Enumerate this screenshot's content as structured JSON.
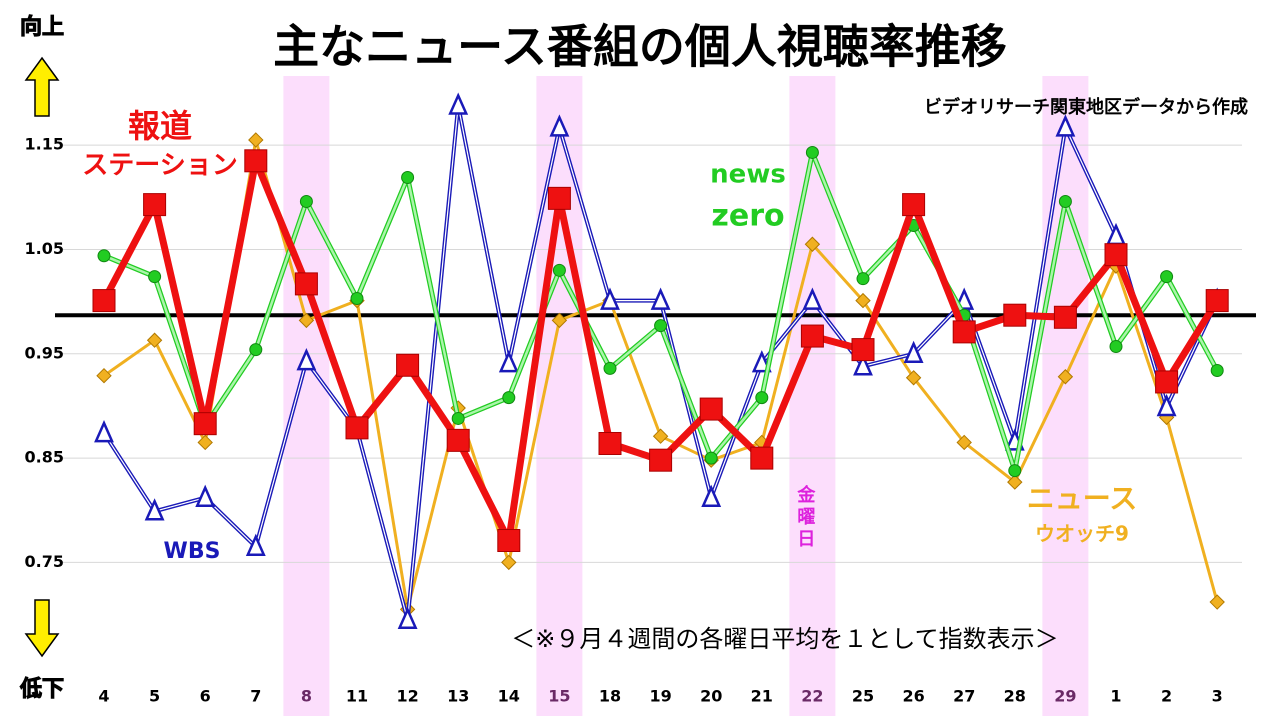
{
  "chart_data": {
    "type": "line",
    "title": "主なニュース番組の個人視聴率推移",
    "source": "ビデオリサーチ関東地区データから作成",
    "note": "＜※９月４週間の各曜日平均を１として指数表示＞",
    "up_label": "向上",
    "down_label": "低下",
    "friday_label": [
      "金",
      "曜",
      "日"
    ],
    "categories": [
      "4",
      "5",
      "6",
      "7",
      "8",
      "11",
      "12",
      "13",
      "14",
      "15",
      "18",
      "19",
      "20",
      "21",
      "22",
      "25",
      "26",
      "27",
      "28",
      "29",
      "1",
      "2",
      "3"
    ],
    "highlight_categories": [
      4,
      9,
      14,
      19
    ],
    "reference": 0.987,
    "ylim": [
      0.69,
      1.2
    ],
    "yticks": [
      1.15,
      1.05,
      0.95,
      0.85,
      0.75
    ],
    "grid": true,
    "series": [
      {
        "label_lines": [
          "ニュース",
          "ウオッチ9"
        ],
        "color": "#f0b020",
        "marker": "diamond",
        "values": [
          0.929,
          0.963,
          0.865,
          1.155,
          0.982,
          1.001,
          0.705,
          0.898,
          0.75,
          0.982,
          1.001,
          0.871,
          0.848,
          0.865,
          1.055,
          1.001,
          0.927,
          0.865,
          0.827,
          0.928,
          1.034,
          0.889,
          0.712
        ]
      },
      {
        "label_lines": [
          "WBS"
        ],
        "color": "#1a1ab8",
        "marker": "triangle",
        "values": [
          0.874,
          0.799,
          0.812,
          0.765,
          0.943,
          0.877,
          0.695,
          1.188,
          0.941,
          1.167,
          1.001,
          1.001,
          0.812,
          0.941,
          1.001,
          0.938,
          0.95,
          1.001,
          0.866,
          1.167,
          1.063,
          0.899,
          1.001
        ]
      },
      {
        "label_lines": [
          "news",
          "zero"
        ],
        "color": "#22cc22",
        "marker": "circle",
        "values": [
          1.044,
          1.024,
          0.881,
          0.954,
          1.096,
          1.003,
          1.119,
          0.888,
          0.908,
          1.03,
          0.936,
          0.977,
          0.85,
          0.908,
          1.143,
          1.022,
          1.073,
          0.987,
          0.838,
          1.096,
          0.957,
          1.024,
          0.934
        ]
      },
      {
        "label_lines": [
          "報道",
          "ステーション"
        ],
        "color": "#ee1111",
        "marker": "square",
        "values": [
          1.001,
          1.093,
          0.883,
          1.135,
          1.017,
          0.879,
          0.939,
          0.867,
          0.771,
          1.099,
          0.864,
          0.848,
          0.897,
          0.85,
          0.967,
          0.954,
          1.093,
          0.971,
          0.987,
          0.985,
          1.045,
          0.923,
          1.001
        ]
      }
    ]
  }
}
